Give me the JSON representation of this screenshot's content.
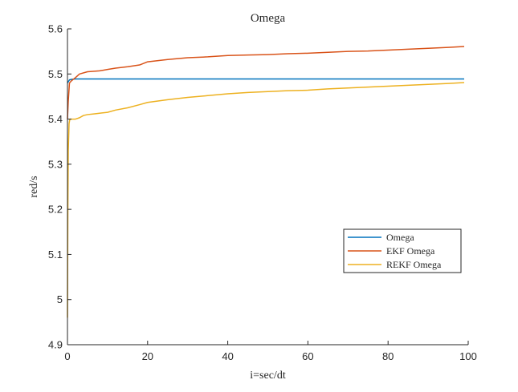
{
  "chart_data": {
    "type": "line",
    "title": "Omega",
    "xlabel": "i=sec/dt",
    "ylabel": "red/s",
    "xlim": [
      0,
      100
    ],
    "ylim": [
      4.9,
      5.6
    ],
    "xticks": [
      0,
      20,
      40,
      60,
      80,
      100
    ],
    "yticks": [
      4.9,
      5,
      5.1,
      5.2,
      5.3,
      5.4,
      5.5,
      5.6
    ],
    "xtick_labels": [
      "0",
      "20",
      "40",
      "60",
      "80",
      "100"
    ],
    "ytick_labels": [
      "4.9",
      "5",
      "5.1",
      "5.2",
      "5.3",
      "5.4",
      "5.5",
      "5.6"
    ],
    "grid": false,
    "legend_position": "lower-right",
    "series": [
      {
        "name": "Omega",
        "color": "#0072BD",
        "x": [
          0,
          0.5,
          1,
          2,
          5,
          10,
          20,
          40,
          60,
          80,
          99
        ],
        "y": [
          5.48,
          5.487,
          5.488,
          5.489,
          5.489,
          5.489,
          5.489,
          5.489,
          5.489,
          5.489,
          5.489
        ]
      },
      {
        "name": "EKF Omega",
        "color": "#D95319",
        "x": [
          0,
          0.2,
          0.5,
          1,
          2,
          3,
          5,
          8,
          10,
          12,
          15,
          18,
          20,
          25,
          30,
          35,
          40,
          45,
          50,
          55,
          60,
          65,
          70,
          75,
          80,
          85,
          90,
          95,
          99
        ],
        "y": [
          5.4,
          5.44,
          5.48,
          5.485,
          5.492,
          5.5,
          5.505,
          5.507,
          5.51,
          5.513,
          5.516,
          5.52,
          5.527,
          5.532,
          5.536,
          5.538,
          5.541,
          5.542,
          5.543,
          5.545,
          5.546,
          5.548,
          5.55,
          5.551,
          5.553,
          5.555,
          5.557,
          5.559,
          5.561
        ]
      },
      {
        "name": "REKF Omega",
        "color": "#EDB120",
        "x": [
          0,
          0.1,
          0.2,
          0.4,
          0.6,
          1,
          2,
          3,
          4,
          5,
          7,
          10,
          12,
          15,
          18,
          20,
          25,
          30,
          35,
          40,
          45,
          50,
          55,
          60,
          65,
          70,
          75,
          80,
          85,
          90,
          95,
          99
        ],
        "y": [
          4.96,
          5.2,
          5.33,
          5.39,
          5.4,
          5.4,
          5.4,
          5.403,
          5.408,
          5.41,
          5.412,
          5.415,
          5.42,
          5.425,
          5.432,
          5.437,
          5.443,
          5.448,
          5.452,
          5.456,
          5.459,
          5.461,
          5.463,
          5.464,
          5.467,
          5.469,
          5.471,
          5.473,
          5.475,
          5.477,
          5.479,
          5.481
        ]
      }
    ]
  }
}
